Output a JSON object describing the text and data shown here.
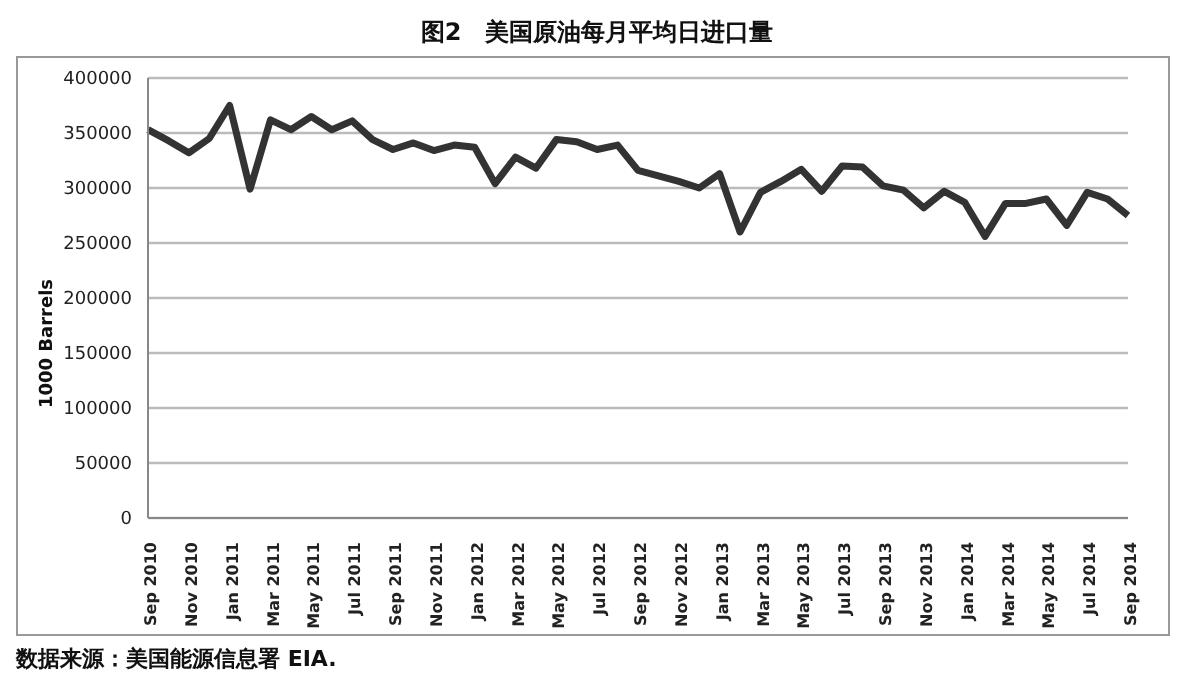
{
  "chart_data": {
    "type": "line",
    "title": "图2　美国原油每月平均日进口量",
    "ylabel": "1000 Barrels",
    "categories": [
      "Sep 2010",
      null,
      "Nov 2010",
      null,
      "Jan 2011",
      null,
      "Mar 2011",
      null,
      "May 2011",
      null,
      "Jul 2011",
      null,
      "Sep 2011",
      null,
      "Nov 2011",
      null,
      "Jan 2012",
      null,
      "Mar 2012",
      null,
      "May 2012",
      null,
      "Jul 2012",
      null,
      "Sep 2012",
      null,
      "Nov 2012",
      null,
      "Jan 2013",
      null,
      "Mar 2013",
      null,
      "May 2013",
      null,
      "Jul 2013",
      null,
      "Sep 2013",
      null,
      "Nov 2013",
      null,
      "Jan 2014",
      null,
      "Mar 2014",
      null,
      "May 2014",
      null,
      "Jul 2014",
      null,
      "Sep 2014"
    ],
    "series": [
      {
        "color": "#333333",
        "values": [
          353000,
          343000,
          332000,
          345000,
          375000,
          299000,
          362000,
          353000,
          365000,
          353000,
          361000,
          344000,
          335000,
          341000,
          334000,
          339000,
          337000,
          304000,
          328000,
          318000,
          344000,
          342000,
          335000,
          339000,
          316000,
          311000,
          306000,
          300000,
          313000,
          260000,
          296000,
          306000,
          317000,
          297000,
          320000,
          319000,
          302000,
          298000,
          282000,
          297000,
          287000,
          256000,
          286000,
          286000,
          290000,
          266000,
          296000,
          290000,
          275000
        ]
      }
    ],
    "ylim": [
      0,
      400000
    ],
    "yticks": [
      0,
      50000,
      100000,
      150000,
      200000,
      250000,
      300000,
      350000,
      400000
    ],
    "grid": "y",
    "legend": false,
    "marker": "none",
    "line_style": "solid",
    "annotations": [
      "数据来源：美国能源信息署 EIA."
    ]
  }
}
